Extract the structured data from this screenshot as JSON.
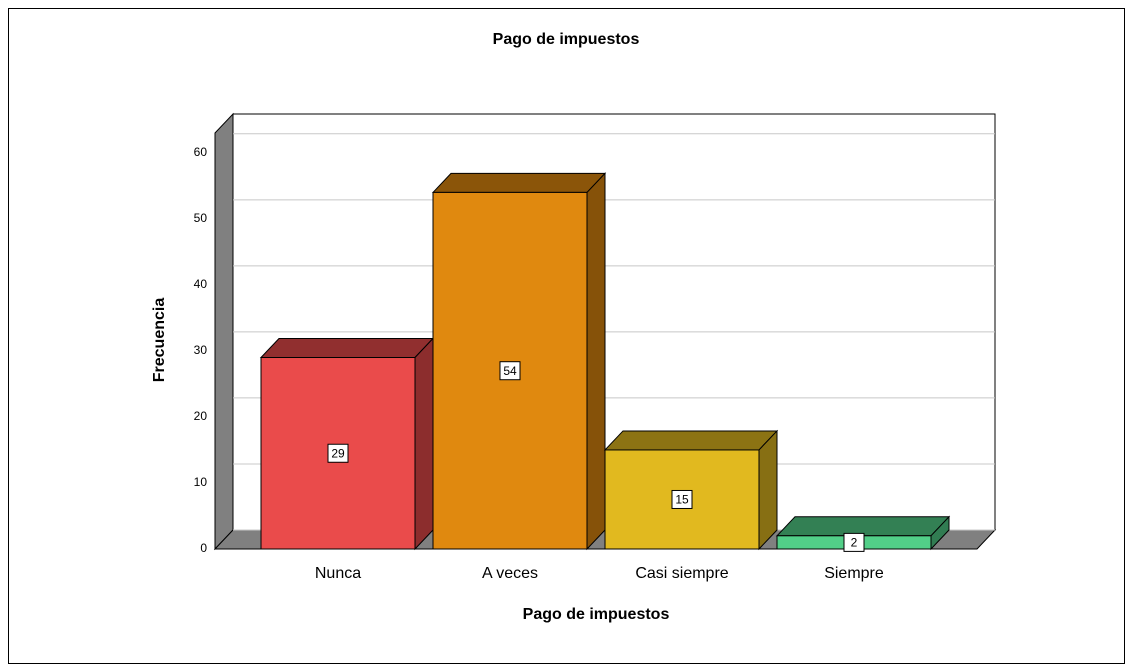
{
  "chart_data": {
    "type": "bar3d",
    "title": "Pago de impuestos",
    "x_label": "Pago de impuestos",
    "y_label": "Frecuencia",
    "categories": [
      "Nunca",
      "A veces",
      "Casi siempre",
      "Siempre"
    ],
    "values": [
      29,
      54,
      15,
      2
    ],
    "colors": [
      "#ea4b4b",
      "#e0890f",
      "#e1b91f",
      "#52cf88"
    ],
    "ylim": [
      0,
      63
    ],
    "yticks": [
      0,
      10,
      20,
      30,
      40,
      50,
      60
    ],
    "grid": true
  }
}
